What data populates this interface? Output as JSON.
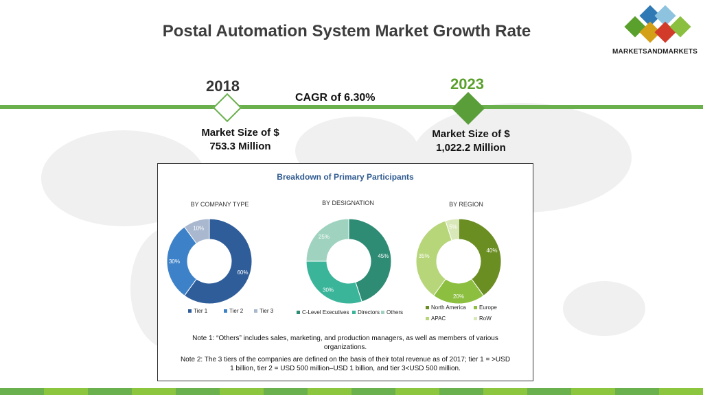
{
  "title": "Postal Automation System Market Growth Rate",
  "logo": {
    "text": "MARKETSANDMARKETS",
    "colors": [
      "#2f7ab5",
      "#5aa02c",
      "#d23a2a",
      "#8bbf3f",
      "#8ec3e0"
    ]
  },
  "timeline": {
    "start": {
      "year": "2018",
      "market_size_line1": "Market Size of $",
      "market_size_line2": "753.3 Million"
    },
    "end": {
      "year": "2023",
      "market_size_line1": "Market Size of $",
      "market_size_line2": "1,022.2 Million"
    },
    "cagr": "CAGR of 6.30%"
  },
  "panel": {
    "title": "Breakdown of Primary Participants",
    "note1_line1": "Note 1: “Others” includes sales, marketing, and production managers, as well as members of various",
    "note1_line2": "organizations.",
    "note2_line1": "Note 2: The 3 tiers of the companies are defined on the basis of their total revenue as of 2017; tier 1 = >USD",
    "note2_line2": "1 billion, tier 2 = USD 500 million–USD 1 billion, and tier 3<USD 500 million."
  },
  "chart_data": [
    {
      "type": "pie",
      "title": "BY COMPANY TYPE",
      "categories": [
        "Tier 1",
        "Tier 2",
        "Tier 3"
      ],
      "values": [
        60,
        30,
        10
      ],
      "labels": [
        "60%",
        "30%",
        "10%"
      ],
      "colors": [
        "#2f5d9a",
        "#3d82c8",
        "#a9b8cf"
      ]
    },
    {
      "type": "pie",
      "title": "BY DESIGNATION",
      "categories": [
        "C-Level Executives",
        "Directors",
        "Others"
      ],
      "values": [
        45,
        30,
        25
      ],
      "labels": [
        "45%",
        "30%",
        "25%"
      ],
      "colors": [
        "#2e8b74",
        "#3ab59a",
        "#9fd3c0"
      ]
    },
    {
      "type": "pie",
      "title": "BY REGION",
      "categories": [
        "North America",
        "Europe",
        "APAC",
        "RoW"
      ],
      "values": [
        40,
        20,
        35,
        5
      ],
      "labels": [
        "40%",
        "20%",
        "35%",
        "5%"
      ],
      "colors": [
        "#6b8e23",
        "#8cbf3f",
        "#b7d67a",
        "#d9e8b8"
      ]
    }
  ]
}
